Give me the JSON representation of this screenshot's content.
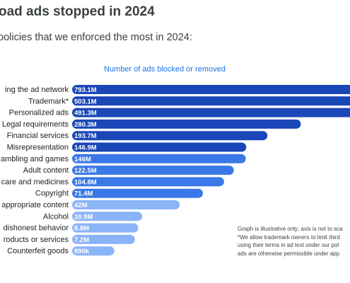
{
  "heading": "oad ads stopped in 2024",
  "intro": "policies that we enforced the most in 2024:",
  "note": [
    "Graph is illustrative only; axis is not to sca",
    "*We allow trademark owners to limit third",
    "using their terms in ad text under our pol",
    "ads are otherwise permissible under app"
  ],
  "colors": {
    "bar_dark": "#1a47b8",
    "bar_mid": "#3b78e7",
    "bar_light": "#8ab4f8",
    "title_blue": "#1a73e8"
  },
  "chart_data": {
    "type": "bar",
    "orientation": "horizontal",
    "title": "Number of ads blocked or removed",
    "categories": [
      "ing the ad network",
      "Trademark*",
      "Personalized ads",
      "Legal requirements",
      "Financial services",
      "Misrepresentation",
      "ambling and games",
      "Adult content",
      "care and medicines",
      "Copyright",
      "appropriate content",
      "Alcohol",
      "dishonest behavior",
      "roducts or services",
      "Counterfeit goods"
    ],
    "values": [
      793100000,
      503100000,
      491300000,
      280300000,
      193700000,
      146900000,
      146000000,
      122500000,
      104800000,
      71400000,
      42000000,
      10900000,
      8800000,
      7200000,
      890000
    ],
    "value_labels": [
      "793.1M",
      "503.1M",
      "491.3M",
      "280.3M",
      "193.7M",
      "146.9M",
      "146M",
      "122.5M",
      "104.8M",
      "71.4M",
      "42M",
      "10.9M",
      "8.8M",
      "7.2M",
      "890k"
    ],
    "axis_note": "illustrative only; axis not to scale",
    "grid": false,
    "legend": "none"
  }
}
